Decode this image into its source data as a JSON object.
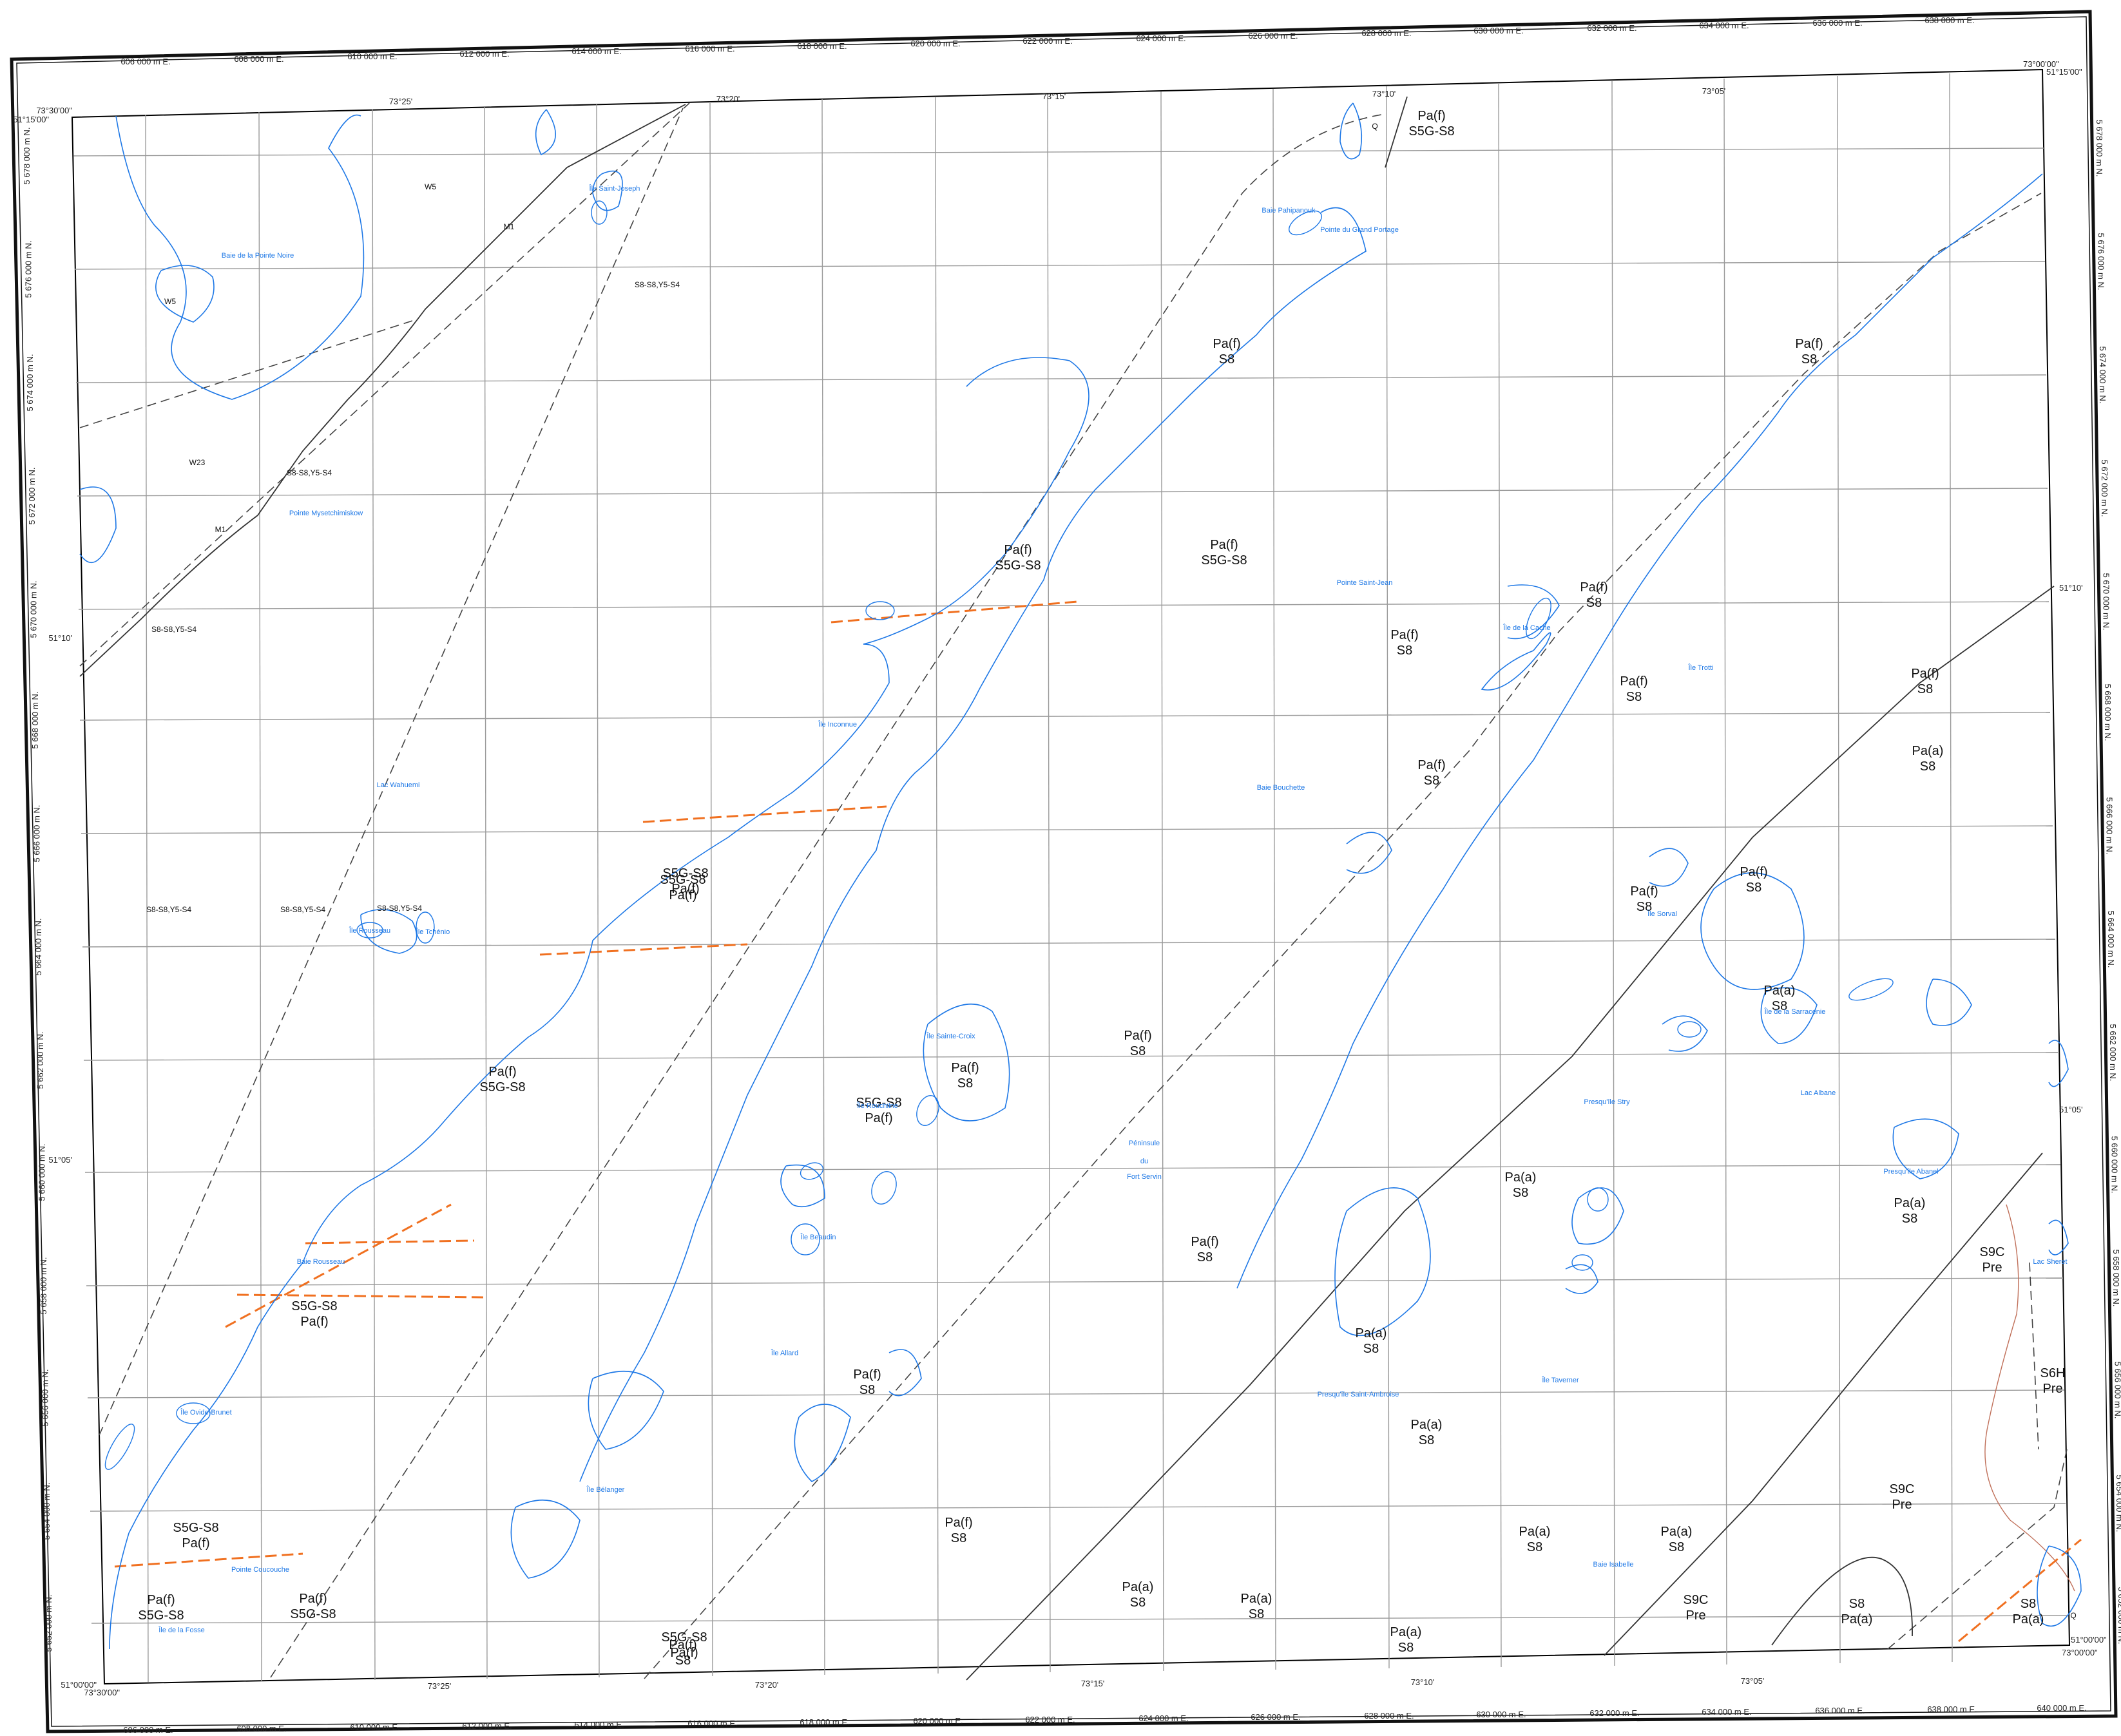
{
  "map": {
    "easting_labels": [
      "606 000 m E.",
      "608 000 m E.",
      "610 000 m E.",
      "612 000 m E.",
      "614 000 m E.",
      "616 000 m E.",
      "618 000 m E.",
      "620 000 m E.",
      "622 000 m E.",
      "624 000 m E.",
      "626 000 m E.",
      "628 000 m E.",
      "630 000 m E.",
      "632 000 m E.",
      "634 000 m E.",
      "636 000 m E.",
      "638 000 m E."
    ],
    "easting_labels_bottom": [
      "606 000 m E.",
      "608 000 m E.",
      "610 000 m E.",
      "612 000 m E.",
      "614 000 m E.",
      "616 000 m E.",
      "618 000 m E.",
      "620 000 m E.",
      "622 000 m E.",
      "624 000 m E.",
      "626 000 m E.",
      "628 000 m E.",
      "630 000 m E.",
      "632 000 m E.",
      "634 000 m E.",
      "636 000 m E.",
      "638 000 m E.",
      "640 000 m E."
    ],
    "northing_labels": [
      "5 678 000 m N.",
      "5 676 000 m N.",
      "5 674 000 m N.",
      "5 672 000 m N.",
      "5 670 000 m N.",
      "5 668 000 m N.",
      "5 666 000 m N.",
      "5 664 000 m N.",
      "5 662 000 m N.",
      "5 660 000 m N.",
      "5 658 000 m N.",
      "5 656 000 m N.",
      "5 654 000 m N.",
      "5 652 000 m N."
    ],
    "longitude_labels": [
      "73°25'",
      "73°20'",
      "73°15'",
      "73°10'",
      "73°05'"
    ],
    "latitude_labels": [
      "51°10'",
      "51°05'"
    ],
    "corners": {
      "nw": "73°30'00\"",
      "nw_lat": "51°15'00\"",
      "ne": "73°00'00\"",
      "ne_lat": "51°15'00\"",
      "sw": "73°30'00\"",
      "sw_lat": "51°00'00\"",
      "se": "73°00'00\"",
      "se_lat": "51°00'00\""
    },
    "colors": {
      "water": "#1e78e6",
      "grid": "#9a9a9a",
      "neatline": "#000000",
      "dike": "#f07020",
      "contact": "#333333",
      "brown_line": "#c0705a"
    }
  },
  "geology_units": [
    {
      "a": "Pa(f)",
      "b": "S5G-S8"
    },
    {
      "a": "Pa(f)",
      "b": "S5G-S8"
    },
    {
      "a": "Pa(f)",
      "b": "S8"
    },
    {
      "a": "Pa(f)",
      "b": "S8"
    },
    {
      "a": "Pa(f)",
      "b": "S5G-S8"
    },
    {
      "a": "Pa(f)",
      "b": "S8"
    },
    {
      "a": "Pa(f)",
      "b": "S8"
    },
    {
      "a": "Pa(f)",
      "b": "S8"
    },
    {
      "a": "Pa(a)",
      "b": "S8"
    },
    {
      "a": "Pa(f)",
      "b": "S8"
    },
    {
      "a": "S5G-S8",
      "b": "Pa(f)"
    },
    {
      "a": "Pa(f)",
      "b": "S8"
    },
    {
      "a": "Pa(f)",
      "b": "S8"
    },
    {
      "a": "Pa(f)",
      "b": "S8"
    },
    {
      "a": "Pa(a)",
      "b": "S8"
    },
    {
      "a": "Pa(f)",
      "b": "S5G-S8"
    },
    {
      "a": "Pa(f)",
      "b": "S8"
    },
    {
      "a": "Pa(f)",
      "b": "S8"
    },
    {
      "a": "Pa(a)",
      "b": "S8"
    },
    {
      "a": "Pa(a)",
      "b": "S8"
    },
    {
      "a": "Pa(a)",
      "b": "S8"
    },
    {
      "a": "Pa(a)",
      "b": "S8"
    },
    {
      "a": "S5G-S8",
      "b": "Pa(f)"
    },
    {
      "a": "Pa(f)",
      "b": "S8"
    },
    {
      "a": "Pa(f)",
      "b": "S8"
    },
    {
      "a": "Pa(f)",
      "b": "S8"
    },
    {
      "a": "Pa(a)",
      "b": "S8"
    },
    {
      "a": "Pa(a)",
      "b": "S8"
    },
    {
      "a": "Pa(a)",
      "b": "S8"
    },
    {
      "a": "Pa(a)",
      "b": "S8"
    },
    {
      "a": "Pa(a)",
      "b": "S8"
    },
    {
      "a": "S9C",
      "b": "Pre"
    },
    {
      "a": "S6H",
      "b": "Pre"
    },
    {
      "a": "S9C",
      "b": "Pre"
    },
    {
      "a": "S9C",
      "b": "Pre"
    },
    {
      "a": "S8",
      "b": "Pa(a)"
    },
    {
      "a": "S8",
      "b": "Pa(a)"
    },
    {
      "a": "Pa(f)",
      "b": "S5G-S8"
    },
    {
      "a": "S5G-S8",
      "b": "Pa(f)"
    },
    {
      "a": "S5G-S8",
      "b": "Pa(f)"
    },
    {
      "a": "S5G-S8",
      "b": "Pa(f)"
    },
    {
      "a": "Pa(f)",
      "b": "S5G-S8"
    },
    {
      "a": "S5G-S8",
      "b": "Pa(f)"
    },
    {
      "a": "Pa(f)",
      "b": "S8"
    }
  ],
  "small_units": [
    "W5",
    "W5",
    "W23",
    "M1",
    "M1",
    "Q",
    "Q",
    "S8-S8,Y5-S4",
    "S8-S8,Y5-S4",
    "S8-S8,Y5-S4",
    "S8-S8,Y5-S4",
    "S8-S8,Y5-S4",
    "S8-S8,Y5-S4"
  ],
  "place_names": [
    "Île Saint-Joseph",
    "Baie Pahipanouk",
    "Pointe du Grand Portage",
    "Pointe Mysetchimiskow",
    "Lac Wahuemi",
    "Île Rousseau",
    "Île Tchénio",
    "Île Inconnue",
    "Pointe Saint-Jean",
    "Île de la Cache",
    "Île Trotti",
    "Baie Bouchette",
    "Île Sorval",
    "Île Sainte-Croix",
    "Île Rouchilne",
    "Péninsule",
    "du",
    "Fort Servin",
    "Île Beaudin",
    "Île Allard",
    "Île Ovide-Brunet",
    "Pointe Coucouche",
    "Île de la Fosse",
    "Île Bélanger",
    "Presqu'île Saint-Ambroise",
    "Île Taverner",
    "Presqu'île Stry",
    "Île de la Sarracenie",
    "Lac Albane",
    "Presqu'île Abanel",
    "Lac Sheret",
    "Baie Rousseau",
    "Baie Isabelle",
    "Baie de la Pointe Noire"
  ]
}
